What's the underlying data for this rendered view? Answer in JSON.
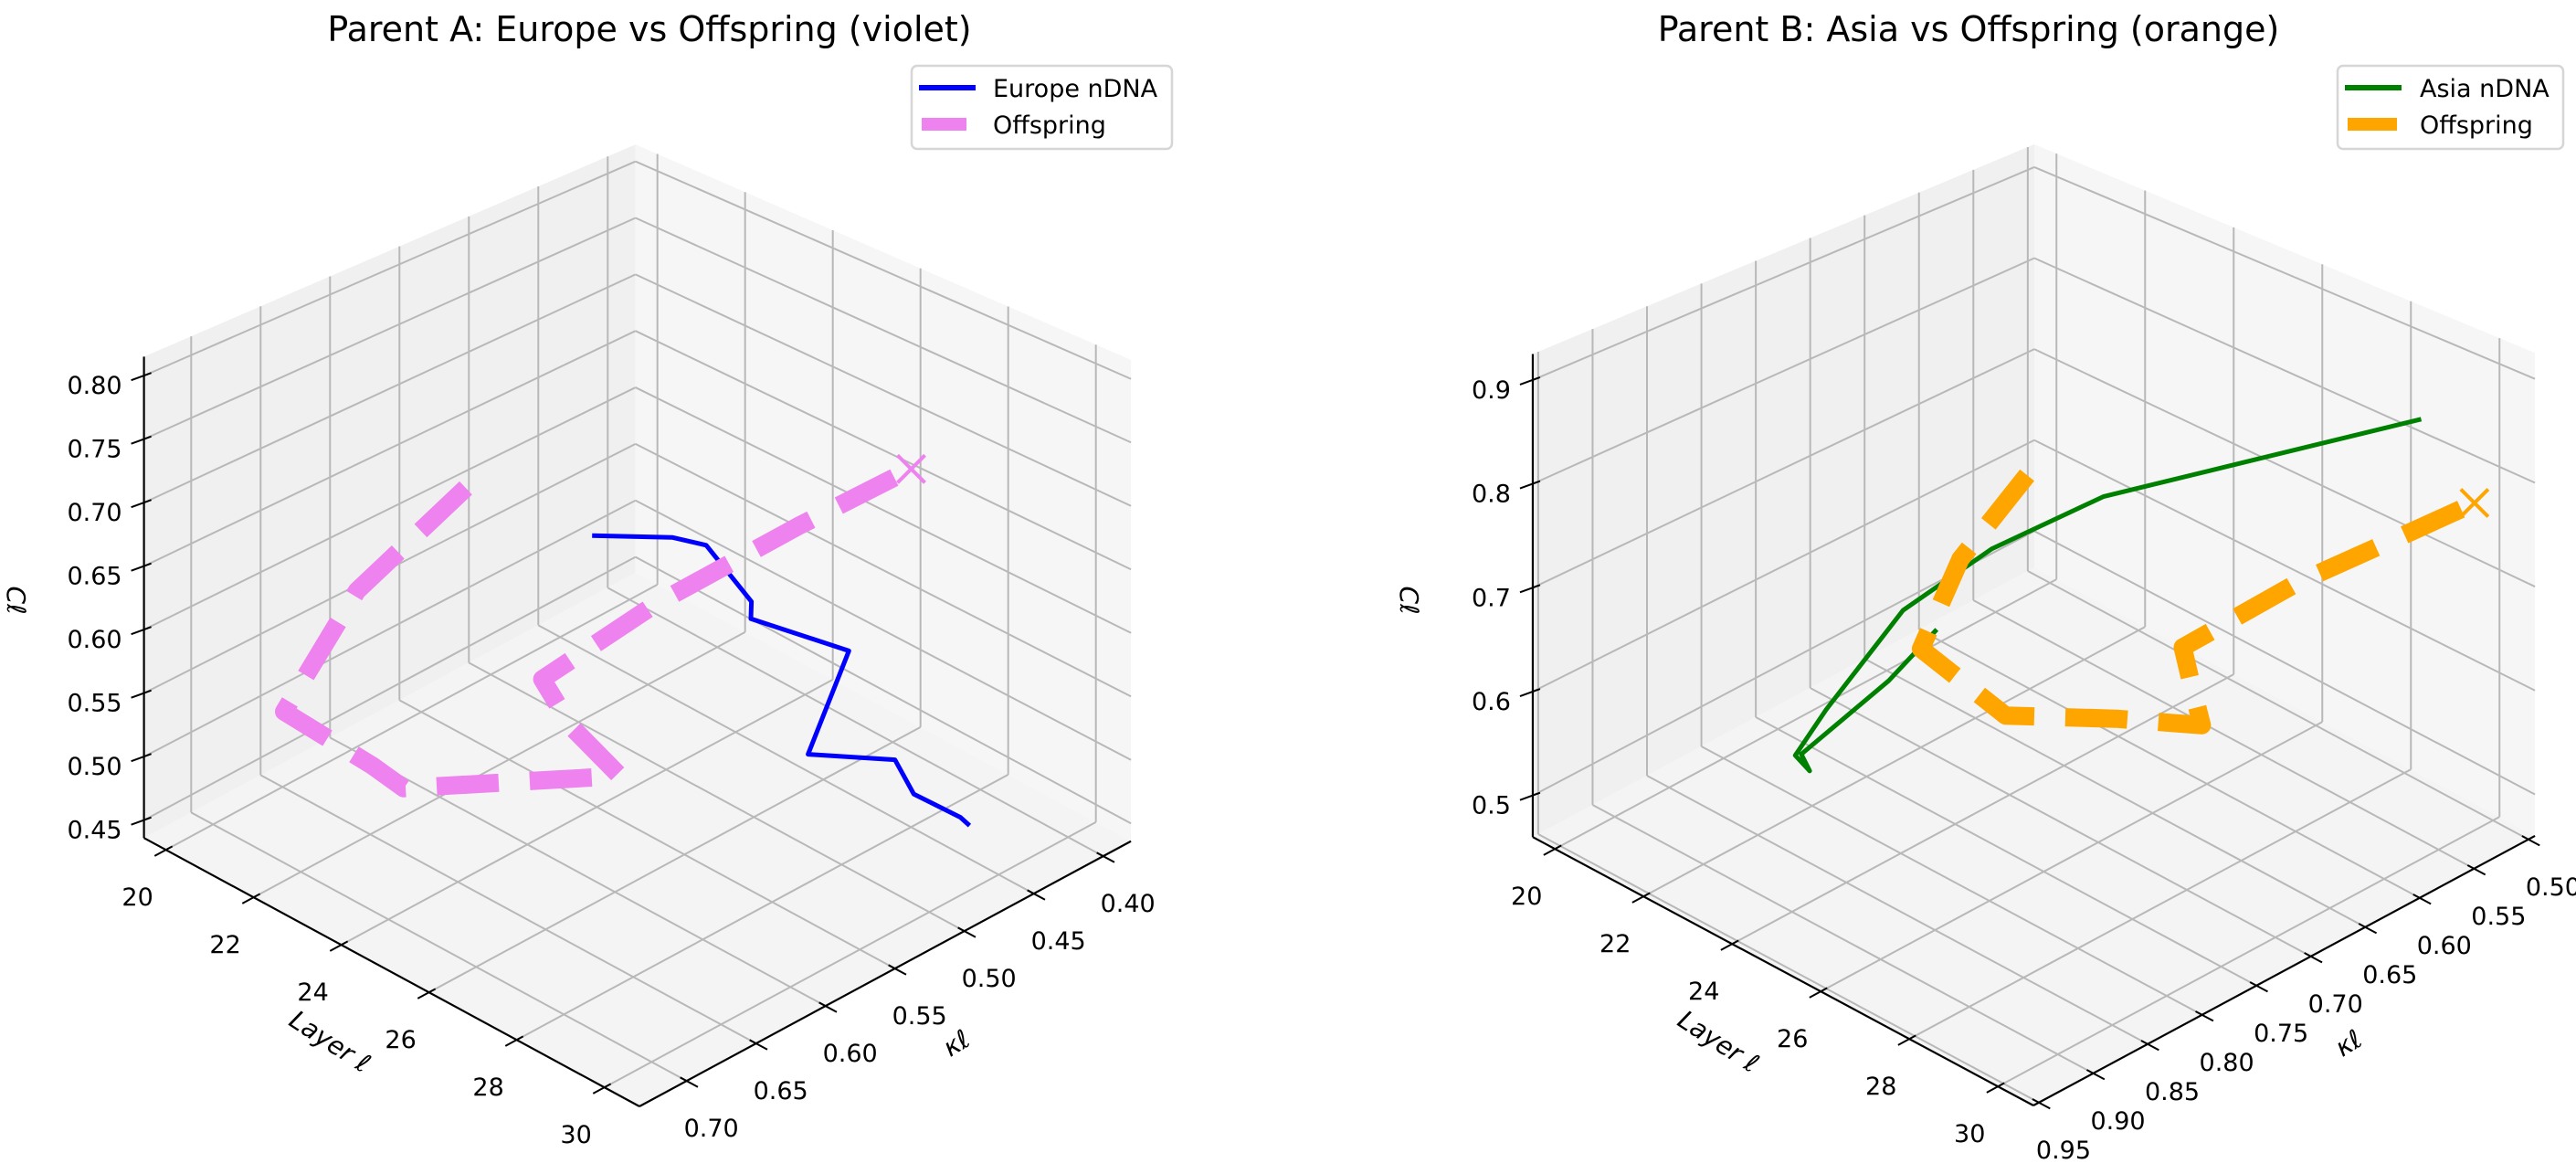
{
  "chart_data": [
    {
      "type": "line3d",
      "title": "Parent A: Europe  vs Offspring (violet)",
      "xlabel": "Layer ℓ",
      "ylabel": "κℓ",
      "zlabel": "Cℓ",
      "x_ticks": [
        "20",
        "22",
        "24",
        "26",
        "28",
        "30"
      ],
      "y_ticks": [
        "0.40",
        "0.45",
        "0.50",
        "0.55",
        "0.60",
        "0.65",
        "0.70"
      ],
      "z_ticks": [
        "0.45",
        "0.50",
        "0.55",
        "0.60",
        "0.65",
        "0.70",
        "0.75",
        "0.80"
      ],
      "xlim": [
        19.5,
        30.8
      ],
      "ylim": [
        0.38,
        0.734
      ],
      "zlim": [
        0.436,
        0.815
      ],
      "grid": true,
      "legend_position": "top-right",
      "legend": [
        "Europe nDNA",
        "Offspring"
      ],
      "series": [
        {
          "name": "Europe nDNA",
          "color": "#0000ff",
          "style": "solid",
          "layer": [
            20,
            21,
            22,
            23,
            24,
            25,
            26,
            27,
            28,
            29,
            30
          ],
          "kappa": [
            0.427,
            0.401,
            0.408,
            0.407,
            0.439,
            0.4,
            0.461,
            0.43,
            0.448,
            0.446,
            0.471
          ],
          "C": [
            0.509,
            0.511,
            0.528,
            0.499,
            0.523,
            0.492,
            0.463,
            0.459,
            0.461,
            0.46,
            0.486
          ]
        },
        {
          "name": "Offspring",
          "color": "#ee82ee",
          "style": "dashed",
          "end_marker": "x",
          "layer": [
            20,
            21,
            22,
            23,
            24,
            25,
            26,
            27,
            28,
            29,
            30
          ],
          "kappa": [
            0.518,
            0.628,
            0.712,
            0.68,
            0.689,
            0.565,
            0.632,
            0.684,
            0.635,
            0.563,
            0.513
          ],
          "C": [
            0.604,
            0.599,
            0.567,
            0.525,
            0.53,
            0.488,
            0.581,
            0.659,
            0.706,
            0.746,
            0.781
          ]
        }
      ]
    },
    {
      "type": "line3d",
      "title": "Parent B: Asia  vs Offspring (orange)",
      "xlabel": "Layer ℓ",
      "ylabel": "κℓ",
      "zlabel": "Cℓ",
      "x_ticks": [
        "20",
        "22",
        "24",
        "26",
        "28",
        "30"
      ],
      "y_ticks": [
        "0.50",
        "0.55",
        "0.60",
        "0.65",
        "0.70",
        "0.75",
        "0.80",
        "0.85",
        "0.90",
        "0.95"
      ],
      "z_ticks": [
        "0.5",
        "0.6",
        "0.7",
        "0.8",
        "0.9"
      ],
      "xlim": [
        19.5,
        30.8
      ],
      "ylim": [
        0.494,
        0.955
      ],
      "zlim": [
        0.46,
        0.925
      ],
      "grid": true,
      "legend_position": "top-right",
      "legend": [
        "Asia nDNA",
        "Offspring"
      ],
      "series": [
        {
          "name": "Asia nDNA",
          "color": "#008000",
          "style": "solid",
          "layer": [
            20,
            21,
            22,
            23,
            24,
            25,
            26,
            27,
            28,
            29,
            30
          ],
          "kappa": [
            0.604,
            0.689,
            0.81,
            0.843,
            0.897,
            0.933,
            0.95,
            0.92,
            0.879,
            0.817,
            0.566
          ],
          "C": [
            0.475,
            0.497,
            0.516,
            0.54,
            0.604,
            0.649,
            0.711,
            0.805,
            0.86,
            0.898,
            0.879
          ]
        },
        {
          "name": "Offspring",
          "color": "#ffa500",
          "style": "dashed",
          "end_marker": "x",
          "layer": [
            20,
            21,
            22,
            23,
            24,
            25,
            26,
            27,
            28,
            29,
            30
          ],
          "kappa": [
            0.521,
            0.623,
            0.7,
            0.663,
            0.602,
            0.564,
            0.614,
            0.663,
            0.599,
            0.542,
            0.517
          ],
          "C": [
            0.59,
            0.584,
            0.559,
            0.494,
            0.479,
            0.474,
            0.565,
            0.649,
            0.699,
            0.737,
            0.776
          ]
        }
      ]
    }
  ]
}
